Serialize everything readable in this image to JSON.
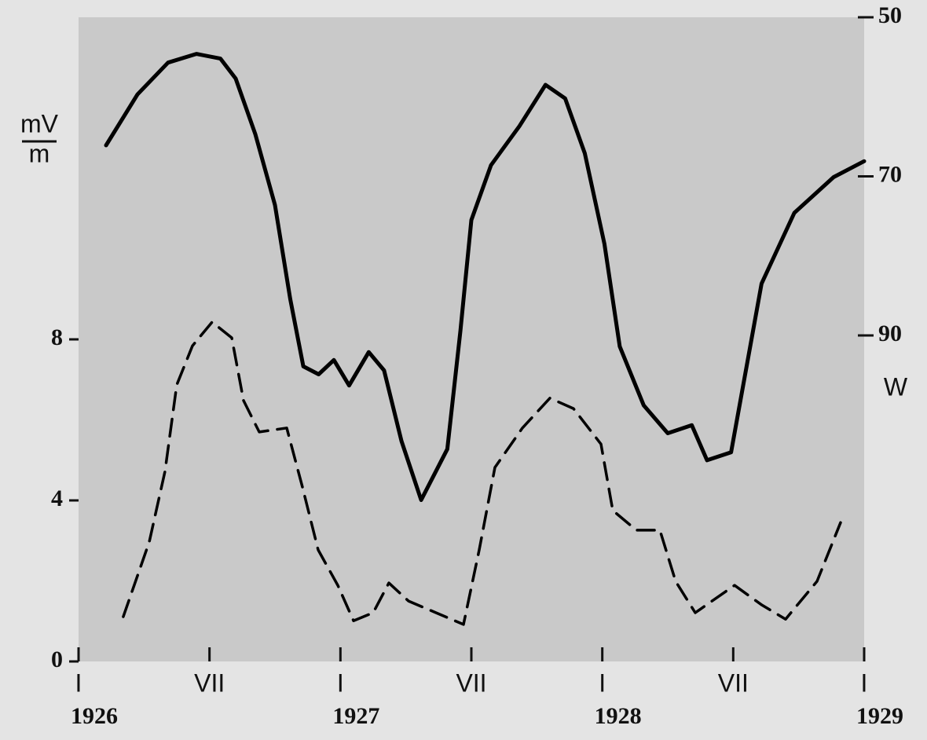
{
  "chart_data": {
    "type": "line",
    "ylabel": [
      "mV",
      "m"
    ],
    "y2label": "W",
    "xlim": [
      0,
      36
    ],
    "xticks": [
      {
        "value": 0,
        "label": "I"
      },
      {
        "value": 6,
        "label": "VII"
      },
      {
        "value": 12,
        "label": "I"
      },
      {
        "value": 18,
        "label": "VII"
      },
      {
        "value": 24,
        "label": "I"
      },
      {
        "value": 30,
        "label": "VII"
      },
      {
        "value": 36,
        "label": "I"
      }
    ],
    "xyears": [
      {
        "value": 0,
        "label": "1926"
      },
      {
        "value": 12,
        "label": "1927"
      },
      {
        "value": 24,
        "label": "1928"
      },
      {
        "value": 36,
        "label": "1929"
      }
    ],
    "ylim": [
      0,
      16
    ],
    "yticks": [
      0,
      4,
      8
    ],
    "y2lim": [
      131,
      50
    ],
    "y2ticks": [
      50,
      70,
      90
    ],
    "series": [
      {
        "color": "#000000",
        "axis": "y2",
        "dash": false,
        "x": [
          1.26,
          2.7,
          4.1,
          5.4,
          6.5,
          7.2,
          8.1,
          9.0,
          9.7,
          10.3,
          11.0,
          11.7,
          12.4,
          13.3,
          14.0,
          14.8,
          15.7,
          16.9,
          17.5,
          18.0,
          18.9,
          20.2,
          21.4,
          22.3,
          23.2,
          24.1,
          24.8,
          25.9,
          27.0,
          28.1,
          28.8,
          29.9,
          31.3,
          32.8,
          34.6,
          36.0
        ],
        "values": [
          66.1,
          59.7,
          55.7,
          54.6,
          55.2,
          57.7,
          64.7,
          73.6,
          85.4,
          93.9,
          94.9,
          93.1,
          96.3,
          92.1,
          94.4,
          103.3,
          110.7,
          104.3,
          89.4,
          75.5,
          68.6,
          63.7,
          58.5,
          60.2,
          67.1,
          78.5,
          91.4,
          98.8,
          102.3,
          101.3,
          105.7,
          104.7,
          83.5,
          74.6,
          70.1,
          68.1
        ]
      },
      {
        "color": "#000000",
        "axis": "y",
        "dash": true,
        "x": [
          2.05,
          3.24,
          3.96,
          4.5,
          5.22,
          6.12,
          7.02,
          7.56,
          8.28,
          9.54,
          10.26,
          10.98,
          11.88,
          12.6,
          13.5,
          14.22,
          15.12,
          16.38,
          17.64,
          18.36,
          19.08,
          20.34,
          21.6,
          22.68,
          23.94,
          24.48,
          25.56,
          26.64,
          27.36,
          28.26,
          30.06,
          31.32,
          32.4,
          33.84,
          34.92
        ],
        "values": [
          1.11,
          2.97,
          4.72,
          6.87,
          7.84,
          8.43,
          8.04,
          6.48,
          5.7,
          5.8,
          4.33,
          2.77,
          1.89,
          1.01,
          1.21,
          1.95,
          1.5,
          1.21,
          0.92,
          2.77,
          4.82,
          5.8,
          6.54,
          6.28,
          5.4,
          3.75,
          3.26,
          3.26,
          1.99,
          1.21,
          1.89,
          1.4,
          1.05,
          1.99,
          3.45
        ]
      }
    ]
  }
}
